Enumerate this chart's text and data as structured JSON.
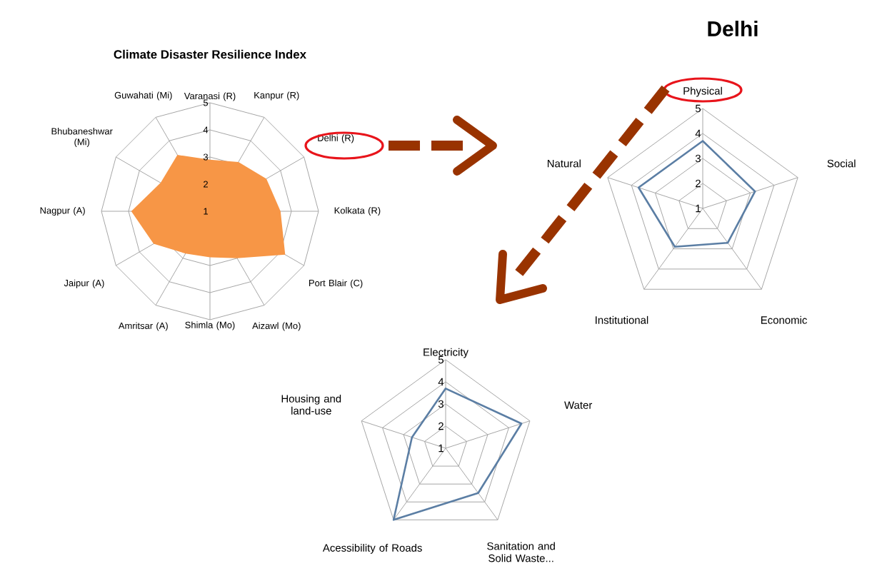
{
  "chart_data": [
    {
      "type": "radar",
      "title": "Climate Disaster Resilience Index",
      "categories": [
        "Varanasi (R)",
        "Kanpur (R)",
        "Delhi (R)",
        "Kolkata (R)",
        "Port Blair (C)",
        "Aizawl (Mo)",
        "Shimla (Mo)",
        "Amritsar (A)",
        "Jaipur (A)",
        "Nagpur (A)",
        "Bhubaneshwar (Mi)",
        "Guwahati (Mi)"
      ],
      "series": [
        {
          "type": "area",
          "color": "#f79646",
          "values": [
            2.9,
            3.1,
            3.4,
            3.6,
            4.2,
            3.0,
            2.7,
            2.8,
            3.4,
            3.9,
            3.1,
            3.4
          ]
        }
      ],
      "ylim": [
        1,
        5
      ],
      "yticks": [
        1,
        2,
        3,
        4,
        5
      ],
      "grid": true
    },
    {
      "type": "radar",
      "title": "Delhi",
      "categories": [
        "Physical",
        "Social",
        "Economic",
        "Institutional",
        "Natural"
      ],
      "series": [
        {
          "color": "#5b7ea4",
          "values": [
            3.7,
            3.2,
            2.7,
            2.9,
            3.7
          ]
        }
      ],
      "ylim": [
        1,
        5
      ],
      "yticks": [
        1,
        2,
        3,
        4,
        5
      ],
      "grid": true
    },
    {
      "type": "radar",
      "categories": [
        "Electricity",
        "Water",
        "Sanitation and Solid Waste...",
        "Acessibility of Roads",
        "Housing and land-use"
      ],
      "series": [
        {
          "color": "#5b7ea4",
          "values": [
            3.7,
            4.6,
            3.5,
            5,
            2.6
          ]
        }
      ],
      "ylim": [
        1,
        5
      ],
      "yticks": [
        1,
        2,
        3,
        4,
        5
      ],
      "grid": true
    }
  ]
}
